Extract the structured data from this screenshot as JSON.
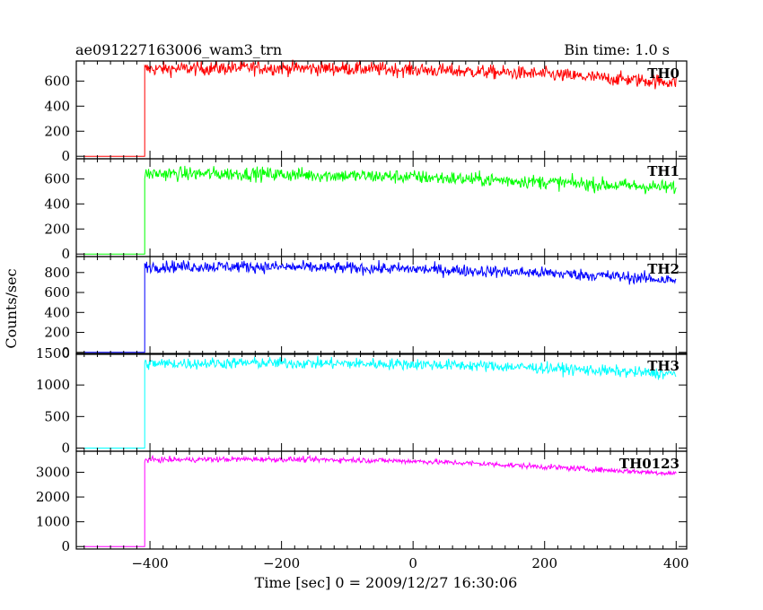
{
  "chart_data": {
    "type": "line",
    "title": "ae091227163006_wam3_trn",
    "subtitle": "Bin time: 1.0 s",
    "xlabel": "Time [sec] 0 = 2009/12/27 16:30:06",
    "ylabel": "Counts/sec",
    "xlim": [
      -512,
      416
    ],
    "x_ticks": [
      -400,
      -200,
      0,
      200,
      400
    ],
    "x_tick_labels": [
      "−400",
      "−200",
      "0",
      "200",
      "400"
    ],
    "onset_time": -408,
    "grid": false,
    "panels": [
      {
        "name": "TH0",
        "color": "#ff0000",
        "ylim": [
          -20,
          760
        ],
        "yticks": [
          0,
          200,
          400,
          600
        ],
        "pre_level": 0,
        "noise": 28,
        "level_points": [
          [
            -408,
            695
          ],
          [
            -250,
            705
          ],
          [
            -100,
            700
          ],
          [
            0,
            690
          ],
          [
            100,
            675
          ],
          [
            200,
            655
          ],
          [
            300,
            620
          ],
          [
            400,
            590
          ]
        ]
      },
      {
        "name": "TH1",
        "color": "#00ff00",
        "ylim": [
          -20,
          760
        ],
        "yticks": [
          0,
          200,
          400,
          600
        ],
        "pre_level": 0,
        "noise": 28,
        "level_points": [
          [
            -408,
            640
          ],
          [
            -250,
            640
          ],
          [
            -100,
            625
          ],
          [
            0,
            615
          ],
          [
            100,
            595
          ],
          [
            200,
            575
          ],
          [
            300,
            550
          ],
          [
            400,
            530
          ]
        ]
      },
      {
        "name": "TH2",
        "color": "#0000ff",
        "ylim": [
          -20,
          960
        ],
        "yticks": [
          0,
          200,
          400,
          600,
          800
        ],
        "pre_level": 0,
        "noise": 30,
        "level_points": [
          [
            -408,
            860
          ],
          [
            -250,
            860
          ],
          [
            -100,
            845
          ],
          [
            0,
            835
          ],
          [
            100,
            815
          ],
          [
            200,
            795
          ],
          [
            300,
            765
          ],
          [
            400,
            720
          ]
        ]
      },
      {
        "name": "TH3",
        "color": "#00ffff",
        "ylim": [
          -50,
          1500
        ],
        "yticks": [
          0,
          500,
          1000,
          1500
        ],
        "pre_level": 0,
        "noise": 45,
        "level_points": [
          [
            -408,
            1335
          ],
          [
            -250,
            1350
          ],
          [
            -100,
            1340
          ],
          [
            0,
            1330
          ],
          [
            100,
            1305
          ],
          [
            200,
            1270
          ],
          [
            300,
            1220
          ],
          [
            400,
            1170
          ]
        ]
      },
      {
        "name": "TH0123",
        "color": "#ff00ff",
        "ylim": [
          -100,
          3850
        ],
        "yticks": [
          0,
          1000,
          2000,
          3000
        ],
        "pre_level": 0,
        "noise": 55,
        "level_points": [
          [
            -408,
            3500
          ],
          [
            -250,
            3530
          ],
          [
            -100,
            3500
          ],
          [
            0,
            3450
          ],
          [
            100,
            3350
          ],
          [
            200,
            3220
          ],
          [
            300,
            3080
          ],
          [
            400,
            2950
          ]
        ]
      }
    ]
  }
}
